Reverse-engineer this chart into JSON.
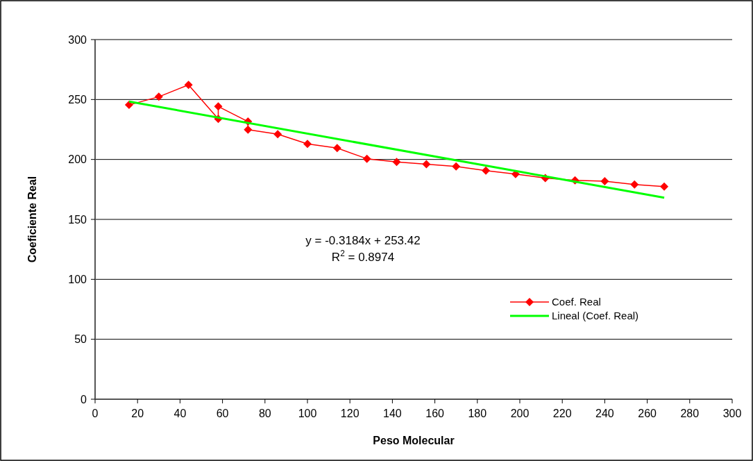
{
  "chart_data": {
    "type": "line",
    "xlabel": "Peso Molecular",
    "ylabel": "Coeficiente Real",
    "xlim": [
      0,
      300
    ],
    "xticks": [
      0,
      20,
      40,
      60,
      80,
      100,
      120,
      140,
      160,
      180,
      200,
      220,
      240,
      260,
      280,
      300
    ],
    "ylim": [
      0,
      300
    ],
    "yticks": [
      0,
      50,
      100,
      150,
      200,
      250,
      300
    ],
    "grid": "y",
    "legend": "right",
    "annotations": [
      "y = -0.3184x + 253.42",
      "R$^{2}$ = 0.8974"
    ],
    "series": [
      {
        "name": "Coef. Real",
        "color": "#ff0000",
        "marker": "diamond",
        "x": [
          16,
          30,
          44,
          58,
          58,
          72,
          72,
          86,
          100,
          114,
          128,
          142,
          156,
          170,
          184,
          198,
          212,
          226,
          240,
          254,
          268
        ],
        "values": [
          245.5,
          252.3,
          262.2,
          233.9,
          244.2,
          231.6,
          224.8,
          221.1,
          213,
          209.5,
          200.6,
          197.9,
          196,
          194.2,
          190.7,
          187.8,
          184.5,
          182.6,
          181.9,
          179.1,
          177.4
        ]
      },
      {
        "name": "Lineal (Coef. Real)",
        "color": "#00ff00",
        "marker": "none",
        "x": [
          16,
          268
        ],
        "values": [
          248.3,
          168.1
        ]
      }
    ]
  }
}
